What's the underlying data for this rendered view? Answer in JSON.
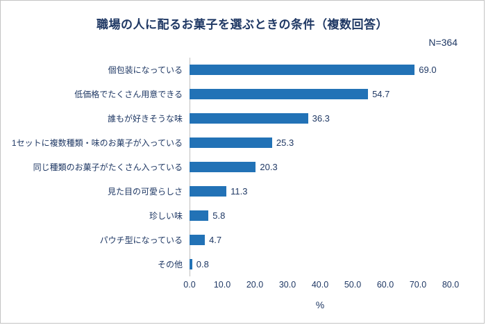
{
  "title": "職場の人に配るお菓子を選ぶときの条件（複数回答）",
  "sample_size_label": "N=364",
  "chart_data": {
    "type": "bar",
    "orientation": "horizontal",
    "title": "職場の人に配るお菓子を選ぶときの条件（複数回答）",
    "sample_size": 364,
    "categories": [
      "個包装になっている",
      "低価格でたくさん用意できる",
      "誰もが好きそうな味",
      "1セットに複数種類・味のお菓子が入っている",
      "同じ種類のお菓子がたくさん入っている",
      "見た目の可愛らしさ",
      "珍しい味",
      "パウチ型になっている",
      "その他"
    ],
    "values": [
      69.0,
      54.7,
      36.3,
      25.3,
      20.3,
      11.3,
      5.8,
      4.7,
      0.8
    ],
    "xlim": [
      0,
      80
    ],
    "x_ticks": [
      "0.0",
      "10.0",
      "20.0",
      "30.0",
      "40.0",
      "50.0",
      "60.0",
      "70.0",
      "80.0"
    ],
    "xlabel": "%",
    "bar_color": "#2272b6",
    "legend": "none",
    "grid": "off"
  }
}
